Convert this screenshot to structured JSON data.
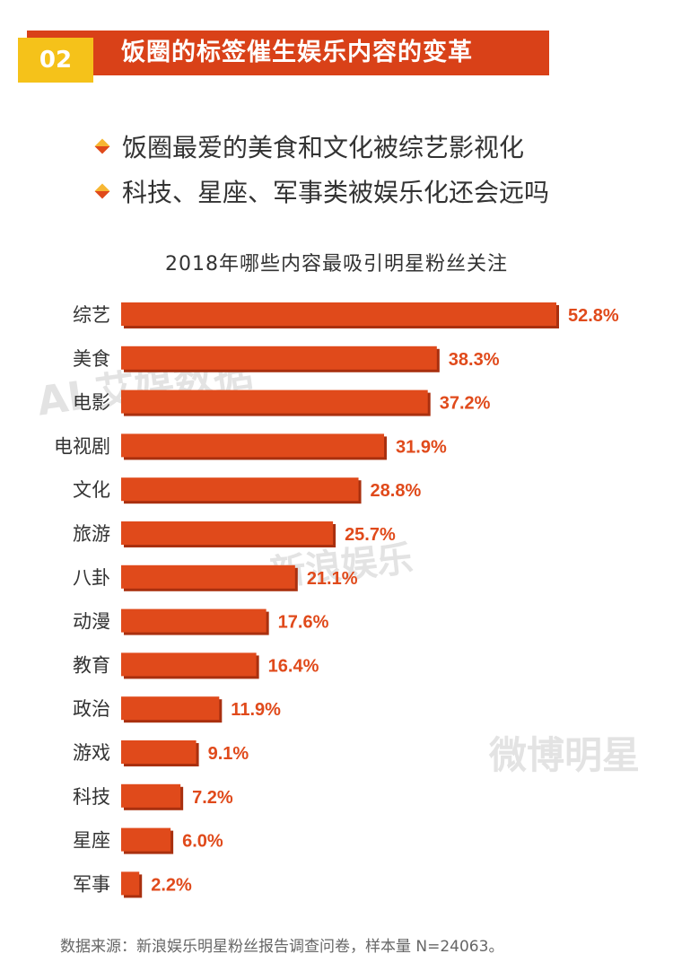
{
  "header": {
    "number": "02",
    "title": "饭圈的标签催生娱乐内容的变革"
  },
  "bullets": [
    "饭圈最爱的美食和文化被综艺影视化",
    "科技、星座、军事类被娱乐化还会远吗"
  ],
  "watermarks": [
    "AI 艾媒数据",
    "新浪娱乐",
    "微博明星"
  ],
  "source": "数据来源：新浪娱乐明星粉丝报告调查问卷，样本量 N=24063。",
  "chart_data": {
    "type": "bar",
    "orientation": "horizontal",
    "title": "2018年哪些内容最吸引明星粉丝关注",
    "categories": [
      "综艺",
      "美食",
      "电影",
      "电视剧",
      "文化",
      "旅游",
      "八卦",
      "动漫",
      "教育",
      "政治",
      "游戏",
      "科技",
      "星座",
      "军事"
    ],
    "values": [
      52.8,
      38.3,
      37.2,
      31.9,
      28.8,
      25.7,
      21.1,
      17.6,
      16.4,
      11.9,
      9.1,
      7.2,
      6.0,
      2.2
    ],
    "value_labels": [
      "52.8%",
      "38.3%",
      "37.2%",
      "31.9%",
      "28.8%",
      "25.7%",
      "21.1%",
      "17.6%",
      "16.4%",
      "11.9%",
      "9.1%",
      "7.2%",
      "6.0%",
      "2.2%"
    ],
    "unit": "%",
    "grid": false,
    "legend": "none",
    "bar_color": "#e04a1b",
    "bar_shadow_color": "#a9300f",
    "label_color": "#e04a1b"
  }
}
